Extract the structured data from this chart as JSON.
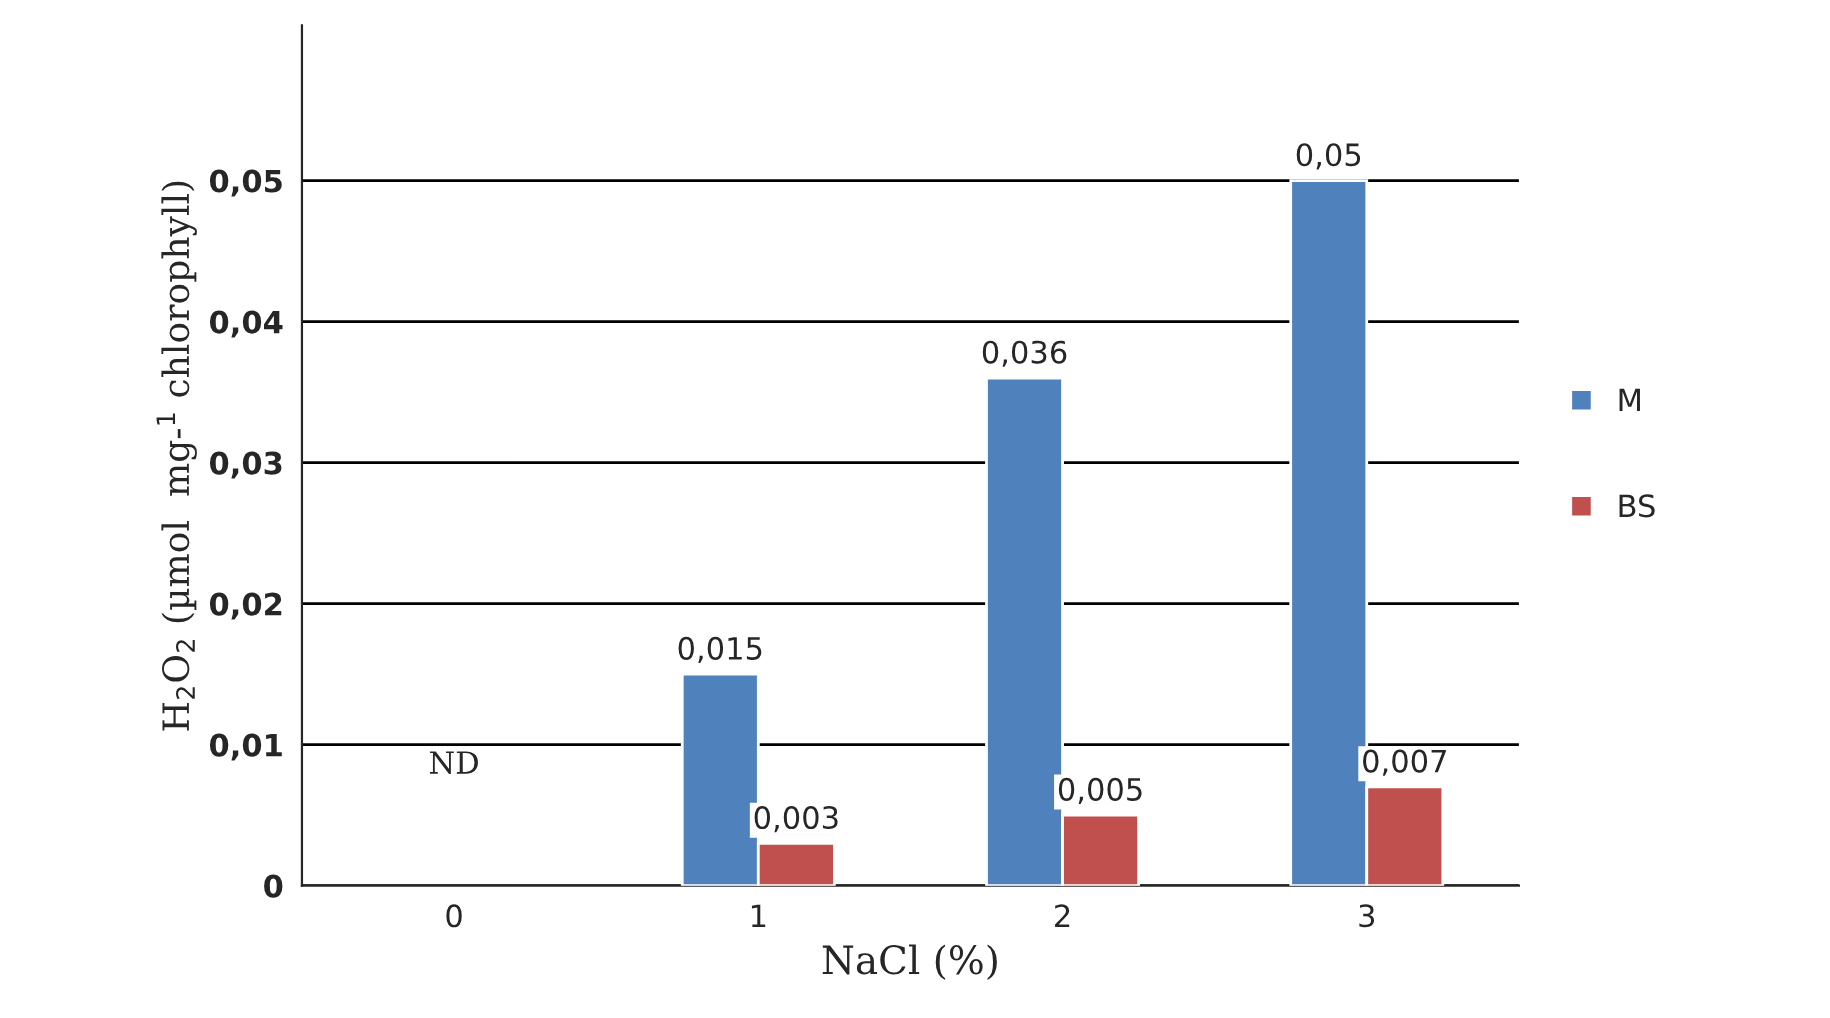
{
  "chart_data": {
    "type": "bar",
    "xlabel": "NaCl (%)",
    "ylabel": "H$_{2}$O$_{2}$ (µmol  mg-$^{1}$ chlorophyll)",
    "categories": [
      "0",
      "1",
      "2",
      "3"
    ],
    "series": [
      {
        "name": "M",
        "color": "#4f81bd",
        "values": [
          null,
          0.015,
          0.036,
          0.05
        ],
        "value_labels": [
          null,
          "0,015",
          "0,036",
          "0,05"
        ]
      },
      {
        "name": "BS",
        "color": "#c0504d",
        "values": [
          null,
          0.003,
          0.005,
          0.007
        ],
        "value_labels": [
          null,
          "0,003",
          "0,005",
          "0,007"
        ]
      }
    ],
    "ylim": [
      0,
      0.061
    ],
    "yticks": [
      {
        "value": 0,
        "label": "0"
      },
      {
        "value": 0.01,
        "label": "0,01"
      },
      {
        "value": 0.02,
        "label": "0,02"
      },
      {
        "value": 0.03,
        "label": "0,03"
      },
      {
        "value": 0.04,
        "label": "0,04"
      },
      {
        "value": 0.05,
        "label": "0,05"
      }
    ],
    "annotations": [
      "ND"
    ],
    "grid": "y",
    "legend": "right"
  }
}
